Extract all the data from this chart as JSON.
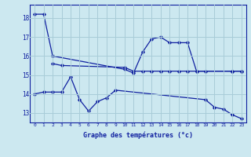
{
  "xlabel": "Graphe des températures (°c)",
  "bg_color": "#cce8f0",
  "grid_color": "#a8ccd8",
  "line_color": "#1020a0",
  "xlim": [
    -0.5,
    23.5
  ],
  "ylim": [
    12.5,
    18.7
  ],
  "yticks": [
    13,
    14,
    15,
    16,
    17,
    18
  ],
  "xticks": [
    0,
    1,
    2,
    3,
    4,
    5,
    6,
    7,
    8,
    9,
    10,
    11,
    12,
    13,
    14,
    15,
    16,
    17,
    18,
    19,
    20,
    21,
    22,
    23
  ],
  "line1_x": [
    0,
    1,
    2,
    10,
    11,
    12,
    13,
    14,
    15,
    16,
    17,
    18,
    22,
    23
  ],
  "line1_y": [
    18.2,
    18.2,
    16.0,
    15.3,
    15.1,
    16.2,
    16.9,
    17.0,
    16.7,
    16.7,
    16.7,
    15.2,
    15.2,
    15.2
  ],
  "line2_x": [
    2,
    3,
    10,
    11,
    12,
    13,
    14,
    15,
    16,
    17,
    18,
    19,
    22,
    23
  ],
  "line2_y": [
    15.6,
    15.5,
    15.4,
    15.2,
    15.2,
    15.2,
    15.2,
    15.2,
    15.2,
    15.2,
    15.2,
    15.2,
    15.2,
    15.2
  ],
  "line3_x": [
    0,
    1,
    2,
    3,
    4,
    5,
    6,
    7,
    8,
    9,
    19,
    20,
    21,
    22,
    23
  ],
  "line3_y": [
    14.0,
    14.1,
    14.1,
    14.1,
    14.9,
    13.7,
    13.1,
    13.6,
    13.8,
    14.2,
    13.7,
    13.3,
    13.2,
    12.9,
    12.7
  ]
}
